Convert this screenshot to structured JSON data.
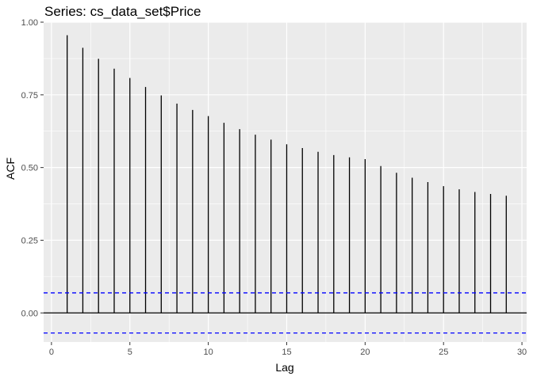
{
  "chart_data": {
    "type": "bar",
    "title": "Series: cs_data_set$Price",
    "xlabel": "Lag",
    "ylabel": "ACF",
    "xlim": [
      -0.5,
      30.3
    ],
    "ylim": [
      -0.1,
      1.0
    ],
    "x_ticks": [
      0,
      5,
      10,
      15,
      20,
      25,
      30
    ],
    "x_tick_labels": [
      "0",
      "5",
      "10",
      "15",
      "20",
      "25",
      "30"
    ],
    "y_ticks": [
      0.0,
      0.25,
      0.5,
      0.75,
      1.0
    ],
    "y_tick_labels": [
      "0.00",
      "0.25",
      "0.50",
      "0.75",
      "1.00"
    ],
    "grid": true,
    "series": [
      {
        "lags": [
          1,
          2,
          3,
          4,
          5,
          6,
          7,
          8,
          9,
          10,
          11,
          12,
          13,
          14,
          15,
          16,
          17,
          18,
          19,
          20,
          21,
          22,
          23,
          24,
          25,
          26,
          27,
          28,
          29
        ],
        "values": [
          0.955,
          0.912,
          0.874,
          0.84,
          0.808,
          0.777,
          0.748,
          0.72,
          0.698,
          0.677,
          0.654,
          0.632,
          0.613,
          0.596,
          0.58,
          0.567,
          0.554,
          0.543,
          0.535,
          0.529,
          0.505,
          0.482,
          0.465,
          0.45,
          0.436,
          0.425,
          0.416,
          0.409,
          0.403
        ]
      }
    ],
    "confidence_bounds": [
      0.069,
      -0.069
    ],
    "colors": {
      "panel": "#ebebeb",
      "grid": "#ffffff",
      "bars": "#000000",
      "bounds": "#0000ff",
      "tick_text": "#4d4d4d"
    }
  }
}
